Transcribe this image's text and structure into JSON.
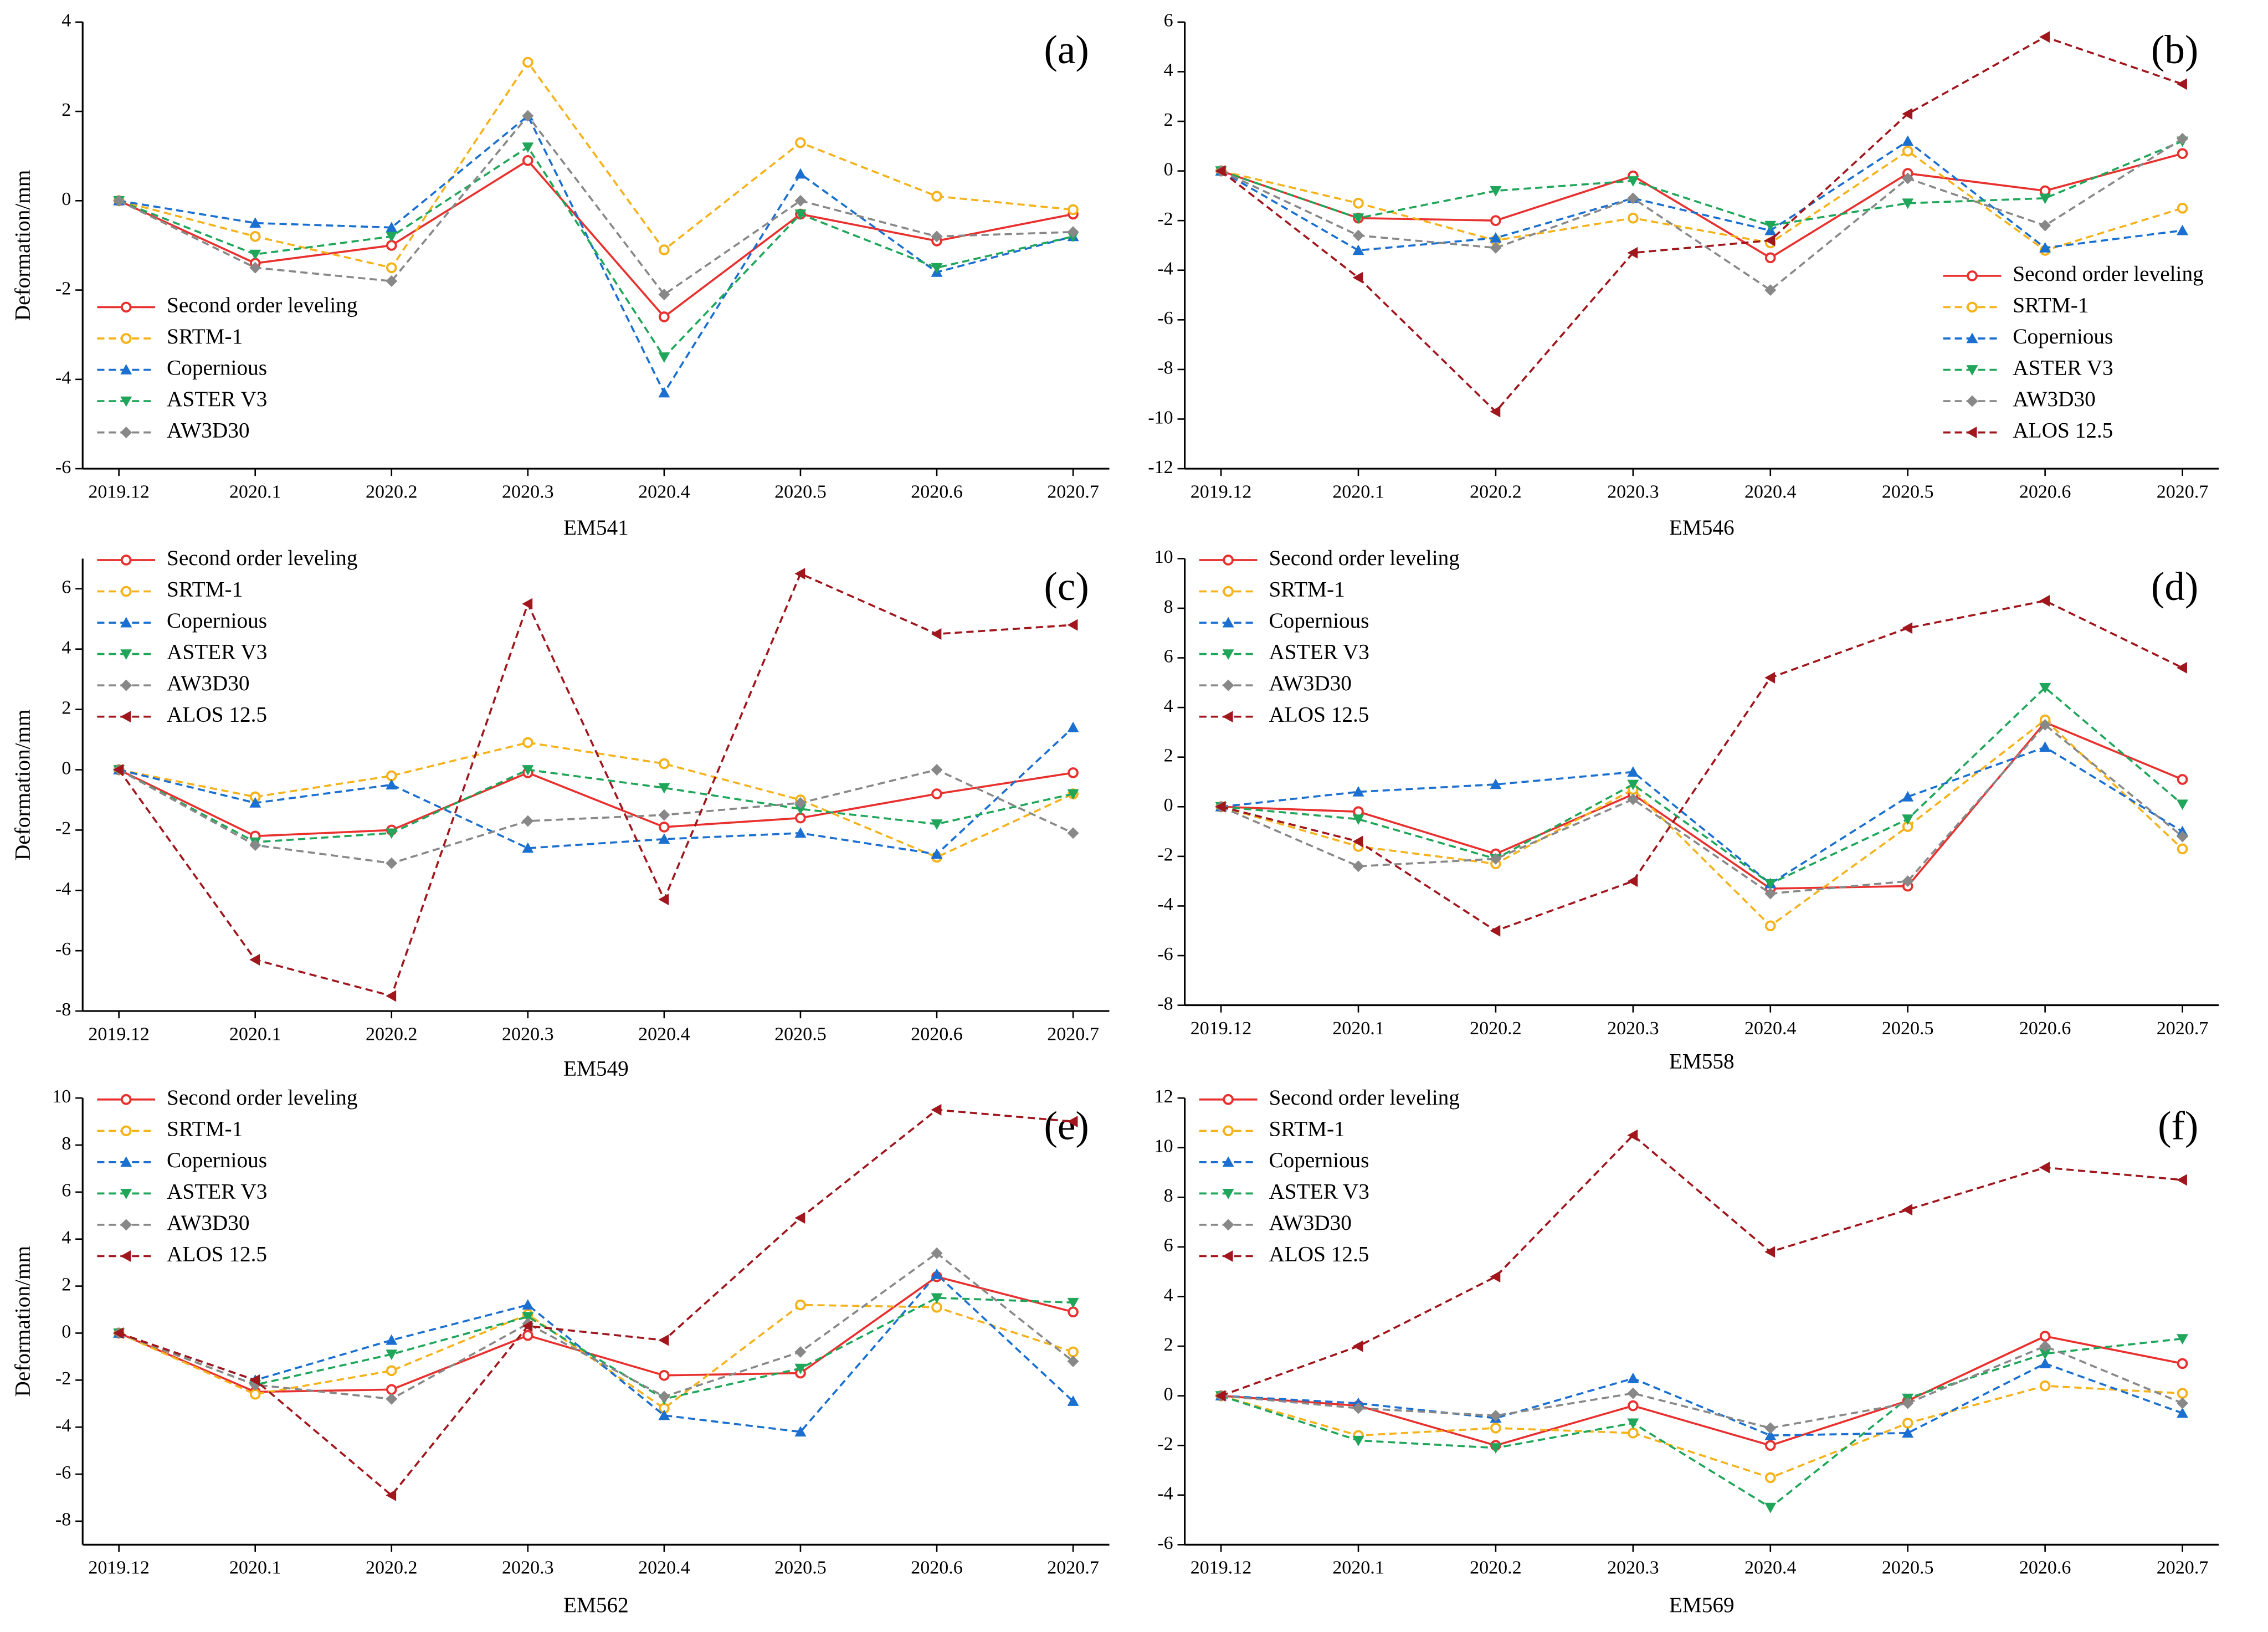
{
  "chart_data": [
    {
      "type": "line",
      "title": "(a)",
      "xlabel": "EM541",
      "ylabel": "Deformation/mm",
      "categories": [
        "2019.12",
        "2020.1",
        "2020.2",
        "2020.3",
        "2020.4",
        "2020.5",
        "2020.6",
        "2020.7"
      ],
      "ylim": [
        -6,
        4
      ],
      "yticks": [
        -6,
        -4,
        -2,
        0,
        2,
        4
      ],
      "legend": "lower left",
      "series": [
        {
          "name": "Second order leveling",
          "color": "#e8312f",
          "linestyle": "solid",
          "marker": "circle",
          "values": [
            0,
            -1.4,
            -1.0,
            0.9,
            -2.6,
            -0.3,
            -0.9,
            -0.3
          ]
        },
        {
          "name": "SRTM-1",
          "color": "#f4b21b",
          "linestyle": "dashed",
          "marker": "circle",
          "values": [
            0,
            -0.8,
            -1.5,
            3.1,
            -1.1,
            1.3,
            0.1,
            -0.2
          ]
        },
        {
          "name": "Copernious",
          "color": "#1a6fd0",
          "linestyle": "dashed",
          "marker": "triangle-up",
          "values": [
            0,
            -0.5,
            -0.6,
            1.9,
            -4.3,
            0.6,
            -1.6,
            -0.8
          ]
        },
        {
          "name": "ASTER V3",
          "color": "#1fa65a",
          "linestyle": "dashed",
          "marker": "triangle-down",
          "values": [
            0,
            -1.2,
            -0.8,
            1.2,
            -3.5,
            -0.3,
            -1.5,
            -0.8
          ]
        },
        {
          "name": "AW3D30",
          "color": "#888888",
          "linestyle": "dashed",
          "marker": "diamond",
          "values": [
            0,
            -1.5,
            -1.8,
            1.9,
            -2.1,
            0.0,
            -0.8,
            -0.7
          ]
        }
      ]
    },
    {
      "type": "line",
      "title": "(b)",
      "xlabel": "EM546",
      "categories": [
        "2019.12",
        "2020.1",
        "2020.2",
        "2020.3",
        "2020.4",
        "2020.5",
        "2020.6",
        "2020.7"
      ],
      "ylim": [
        -12,
        6
      ],
      "yticks": [
        -12,
        -10,
        -8,
        -6,
        -4,
        -2,
        0,
        2,
        4,
        6
      ],
      "legend": "lower right",
      "series": [
        {
          "name": "Second order leveling",
          "color": "#e8312f",
          "linestyle": "solid",
          "marker": "circle",
          "values": [
            0,
            -1.9,
            -2.0,
            -0.2,
            -3.5,
            -0.1,
            -0.8,
            0.7
          ]
        },
        {
          "name": "SRTM-1",
          "color": "#f4b21b",
          "linestyle": "dashed",
          "marker": "circle",
          "values": [
            0,
            -1.3,
            -2.8,
            -1.9,
            -2.9,
            0.8,
            -3.2,
            -1.5
          ]
        },
        {
          "name": "Copernious",
          "color": "#1a6fd0",
          "linestyle": "dashed",
          "marker": "triangle-up",
          "values": [
            0,
            -3.2,
            -2.7,
            -1.1,
            -2.4,
            1.2,
            -3.1,
            -2.4
          ]
        },
        {
          "name": "ASTER V3",
          "color": "#1fa65a",
          "linestyle": "dashed",
          "marker": "triangle-down",
          "values": [
            0,
            -1.9,
            -0.8,
            -0.4,
            -2.2,
            -1.3,
            -1.1,
            1.2
          ]
        },
        {
          "name": "AW3D30",
          "color": "#888888",
          "linestyle": "dashed",
          "marker": "diamond",
          "values": [
            0,
            -2.6,
            -3.1,
            -1.1,
            -4.8,
            -0.3,
            -2.2,
            1.3
          ]
        },
        {
          "name": "ALOS 12.5",
          "color": "#a0161c",
          "linestyle": "dashed",
          "marker": "triangle-left",
          "values": [
            0,
            -4.3,
            -9.7,
            -3.3,
            -2.8,
            2.3,
            5.4,
            3.5
          ]
        }
      ]
    },
    {
      "type": "line",
      "title": "(c)",
      "xlabel": "EM549",
      "ylabel": "Deformation/mm",
      "categories": [
        "2019.12",
        "2020.1",
        "2020.2",
        "2020.3",
        "2020.4",
        "2020.5",
        "2020.6",
        "2020.7"
      ],
      "ylim": [
        -8,
        7
      ],
      "yticks": [
        -8,
        -6,
        -4,
        -2,
        0,
        2,
        4,
        6
      ],
      "legend": "upper left",
      "series": [
        {
          "name": "Second order leveling",
          "color": "#e8312f",
          "linestyle": "solid",
          "marker": "circle",
          "values": [
            0,
            -2.2,
            -2.0,
            -0.1,
            -1.9,
            -1.6,
            -0.8,
            -0.1
          ]
        },
        {
          "name": "SRTM-1",
          "color": "#f4b21b",
          "linestyle": "dashed",
          "marker": "circle",
          "values": [
            0,
            -0.9,
            -0.2,
            0.9,
            0.2,
            -1.0,
            -2.9,
            -0.8
          ]
        },
        {
          "name": "Copernious",
          "color": "#1a6fd0",
          "linestyle": "dashed",
          "marker": "triangle-up",
          "values": [
            0,
            -1.1,
            -0.5,
            -2.6,
            -2.3,
            -2.1,
            -2.8,
            1.4
          ]
        },
        {
          "name": "ASTER V3",
          "color": "#1fa65a",
          "linestyle": "dashed",
          "marker": "triangle-down",
          "values": [
            0,
            -2.4,
            -2.1,
            0.0,
            -0.6,
            -1.3,
            -1.8,
            -0.8
          ]
        },
        {
          "name": "AW3D30",
          "color": "#888888",
          "linestyle": "dashed",
          "marker": "diamond",
          "values": [
            0,
            -2.5,
            -3.1,
            -1.7,
            -1.5,
            -1.1,
            0.0,
            -2.1
          ]
        },
        {
          "name": "ALOS 12.5",
          "color": "#a0161c",
          "linestyle": "dashed",
          "marker": "triangle-left",
          "values": [
            0,
            -6.3,
            -7.5,
            5.5,
            -4.3,
            6.5,
            4.5,
            4.8
          ]
        }
      ]
    },
    {
      "type": "line",
      "title": "(d)",
      "xlabel": "EM558",
      "categories": [
        "2019.12",
        "2020.1",
        "2020.2",
        "2020.3",
        "2020.4",
        "2020.5",
        "2020.6",
        "2020.7"
      ],
      "ylim": [
        -8,
        10
      ],
      "yticks": [
        -8,
        -6,
        -4,
        -2,
        0,
        2,
        4,
        6,
        8,
        10
      ],
      "legend": "upper left",
      "series": [
        {
          "name": "Second order leveling",
          "color": "#e8312f",
          "linestyle": "solid",
          "marker": "circle",
          "values": [
            0,
            -0.2,
            -1.9,
            0.5,
            -3.3,
            -3.2,
            3.4,
            1.1
          ]
        },
        {
          "name": "SRTM-1",
          "color": "#f4b21b",
          "linestyle": "dashed",
          "marker": "circle",
          "values": [
            0,
            -1.6,
            -2.3,
            0.7,
            -4.8,
            -0.8,
            3.5,
            -1.7
          ]
        },
        {
          "name": "Copernious",
          "color": "#1a6fd0",
          "linestyle": "dashed",
          "marker": "triangle-up",
          "values": [
            0,
            0.6,
            0.9,
            1.4,
            -3.1,
            0.4,
            2.4,
            -1.0
          ]
        },
        {
          "name": "ASTER V3",
          "color": "#1fa65a",
          "linestyle": "dashed",
          "marker": "triangle-down",
          "values": [
            0,
            -0.5,
            -2.1,
            0.9,
            -3.1,
            -0.5,
            4.8,
            0.1
          ]
        },
        {
          "name": "AW3D30",
          "color": "#888888",
          "linestyle": "dashed",
          "marker": "diamond",
          "values": [
            0,
            -2.4,
            -2.1,
            0.3,
            -3.5,
            -3.0,
            3.3,
            -1.2
          ]
        },
        {
          "name": "ALOS 12.5",
          "color": "#a0161c",
          "linestyle": "dashed",
          "marker": "triangle-left",
          "values": [
            0,
            -1.4,
            -5.0,
            -3.0,
            5.2,
            7.2,
            8.3,
            5.6
          ]
        }
      ]
    },
    {
      "type": "line",
      "title": "(e)",
      "xlabel": "EM562",
      "ylabel": "Deformation/mm",
      "categories": [
        "2019.12",
        "2020.1",
        "2020.2",
        "2020.3",
        "2020.4",
        "2020.5",
        "2020.6",
        "2020.7"
      ],
      "ylim": [
        -9,
        10
      ],
      "yticks": [
        -8,
        -6,
        -4,
        -2,
        0,
        2,
        4,
        6,
        8,
        10
      ],
      "legend": "upper left",
      "series": [
        {
          "name": "Second order leveling",
          "color": "#e8312f",
          "linestyle": "solid",
          "marker": "circle",
          "values": [
            0,
            -2.5,
            -2.4,
            -0.1,
            -1.8,
            -1.7,
            2.4,
            0.9
          ]
        },
        {
          "name": "SRTM-1",
          "color": "#f4b21b",
          "linestyle": "dashed",
          "marker": "circle",
          "values": [
            0,
            -2.6,
            -1.6,
            0.8,
            -3.2,
            1.2,
            1.1,
            -0.8
          ]
        },
        {
          "name": "Copernious",
          "color": "#1a6fd0",
          "linestyle": "dashed",
          "marker": "triangle-up",
          "values": [
            0,
            -2.0,
            -0.3,
            1.2,
            -3.5,
            -4.2,
            2.5,
            -2.9
          ]
        },
        {
          "name": "ASTER V3",
          "color": "#1fa65a",
          "linestyle": "dashed",
          "marker": "triangle-down",
          "values": [
            0,
            -2.2,
            -0.9,
            0.7,
            -2.8,
            -1.5,
            1.5,
            1.3
          ]
        },
        {
          "name": "AW3D30",
          "color": "#888888",
          "linestyle": "dashed",
          "marker": "diamond",
          "values": [
            0,
            -2.2,
            -2.8,
            0.4,
            -2.7,
            -0.8,
            3.4,
            -1.2
          ]
        },
        {
          "name": "ALOS 12.5",
          "color": "#a0161c",
          "linestyle": "dashed",
          "marker": "triangle-left",
          "values": [
            0,
            -2.0,
            -6.9,
            0.3,
            -0.3,
            4.9,
            9.5,
            9.0
          ]
        }
      ]
    },
    {
      "type": "line",
      "title": "(f)",
      "xlabel": "EM569",
      "categories": [
        "2019.12",
        "2020.1",
        "2020.2",
        "2020.3",
        "2020.4",
        "2020.5",
        "2020.6",
        "2020.7"
      ],
      "ylim": [
        -6,
        12
      ],
      "yticks": [
        -6,
        -4,
        -2,
        0,
        2,
        4,
        6,
        8,
        10,
        12
      ],
      "legend": "upper left",
      "series": [
        {
          "name": "Second order leveling",
          "color": "#e8312f",
          "linestyle": "solid",
          "marker": "circle",
          "values": [
            0,
            -0.4,
            -2.0,
            -0.4,
            -2.0,
            -0.2,
            2.4,
            1.3
          ]
        },
        {
          "name": "SRTM-1",
          "color": "#f4b21b",
          "linestyle": "dashed",
          "marker": "circle",
          "values": [
            0,
            -1.6,
            -1.3,
            -1.5,
            -3.3,
            -1.1,
            0.4,
            0.1
          ]
        },
        {
          "name": "Copernious",
          "color": "#1a6fd0",
          "linestyle": "dashed",
          "marker": "triangle-up",
          "values": [
            0,
            -0.3,
            -0.9,
            0.7,
            -1.6,
            -1.5,
            1.3,
            -0.7
          ]
        },
        {
          "name": "ASTER V3",
          "color": "#1fa65a",
          "linestyle": "dashed",
          "marker": "triangle-down",
          "values": [
            0,
            -1.8,
            -2.1,
            -1.1,
            -4.5,
            -0.1,
            1.7,
            2.3
          ]
        },
        {
          "name": "AW3D30",
          "color": "#888888",
          "linestyle": "dashed",
          "marker": "diamond",
          "values": [
            0,
            -0.5,
            -0.8,
            0.1,
            -1.3,
            -0.3,
            2.0,
            -0.3
          ]
        },
        {
          "name": "ALOS 12.5",
          "color": "#a0161c",
          "linestyle": "dashed",
          "marker": "triangle-left",
          "values": [
            0,
            2.0,
            4.8,
            10.5,
            5.8,
            7.5,
            9.2,
            8.7
          ]
        }
      ]
    }
  ]
}
